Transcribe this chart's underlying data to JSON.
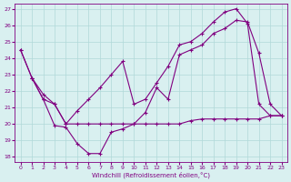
{
  "line1_x": [
    0,
    1,
    2,
    3,
    4,
    5,
    6,
    7,
    8,
    9,
    10,
    11,
    12,
    13,
    14,
    15,
    16,
    17,
    18,
    19,
    20,
    21,
    22,
    23
  ],
  "line1_y": [
    24.5,
    22.8,
    21.5,
    19.9,
    19.8,
    18.8,
    18.2,
    18.2,
    19.5,
    19.7,
    20.0,
    20.7,
    22.2,
    21.5,
    24.2,
    24.5,
    24.8,
    25.5,
    25.8,
    26.3,
    26.2,
    24.3,
    21.2,
    20.5
  ],
  "line2_x": [
    1,
    2,
    3,
    4,
    5,
    6,
    7,
    8,
    9,
    10,
    11,
    12,
    13,
    14,
    15,
    16,
    17,
    18,
    19,
    20,
    21,
    22,
    23
  ],
  "line2_y": [
    22.8,
    21.8,
    21.2,
    20.0,
    20.0,
    20.0,
    20.0,
    20.0,
    20.0,
    20.0,
    20.0,
    20.0,
    20.0,
    20.0,
    20.2,
    20.3,
    20.3,
    20.3,
    20.3,
    20.3,
    20.3,
    20.5,
    20.5
  ],
  "line3_x": [
    0,
    1,
    2,
    3,
    4,
    5,
    6,
    7,
    8,
    9,
    10,
    11,
    12,
    13,
    14,
    15,
    16,
    17,
    18,
    19,
    20,
    21,
    22,
    23
  ],
  "line3_y": [
    24.5,
    22.8,
    21.5,
    21.2,
    20.0,
    20.8,
    21.5,
    22.2,
    23.0,
    23.8,
    21.2,
    21.5,
    22.5,
    23.5,
    24.8,
    25.0,
    25.5,
    26.2,
    26.8,
    27.0,
    26.1,
    21.2,
    20.5,
    20.5
  ],
  "line_color": "#800080",
  "bg_color": "#d9f0f0",
  "grid_color": "#b0d8d8",
  "xlabel": "Windchill (Refroidissement éolien,°C)",
  "ylim": [
    18,
    27
  ],
  "xlim": [
    0,
    23
  ],
  "yticks": [
    18,
    19,
    20,
    21,
    22,
    23,
    24,
    25,
    26,
    27
  ],
  "xticks": [
    0,
    1,
    2,
    3,
    4,
    5,
    6,
    7,
    8,
    9,
    10,
    11,
    12,
    13,
    14,
    15,
    16,
    17,
    18,
    19,
    20,
    21,
    22,
    23
  ]
}
